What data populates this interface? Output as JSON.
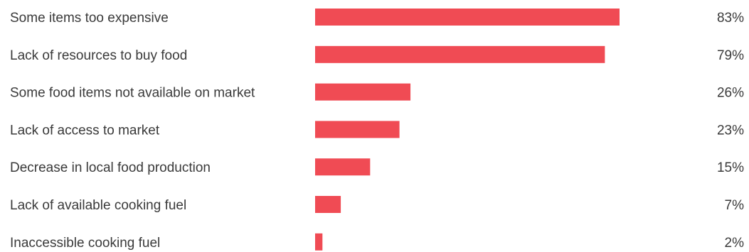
{
  "chart_data": {
    "type": "bar",
    "orientation": "horizontal",
    "categories": [
      "Some items too expensive",
      "Lack of resources to buy food",
      "Some food items not available on market",
      "Lack of access to market",
      "Decrease in local food production",
      "Lack of available cooking fuel",
      "Inaccessible cooking fuel"
    ],
    "values": [
      83,
      79,
      26,
      23,
      15,
      7,
      2
    ],
    "value_labels": [
      "83%",
      "79%",
      "26%",
      "23%",
      "15%",
      "7%",
      "2%"
    ],
    "unit": "%",
    "xlim": [
      0,
      100
    ],
    "grid": false,
    "legend": "none",
    "bar_color": "#f04b54"
  }
}
